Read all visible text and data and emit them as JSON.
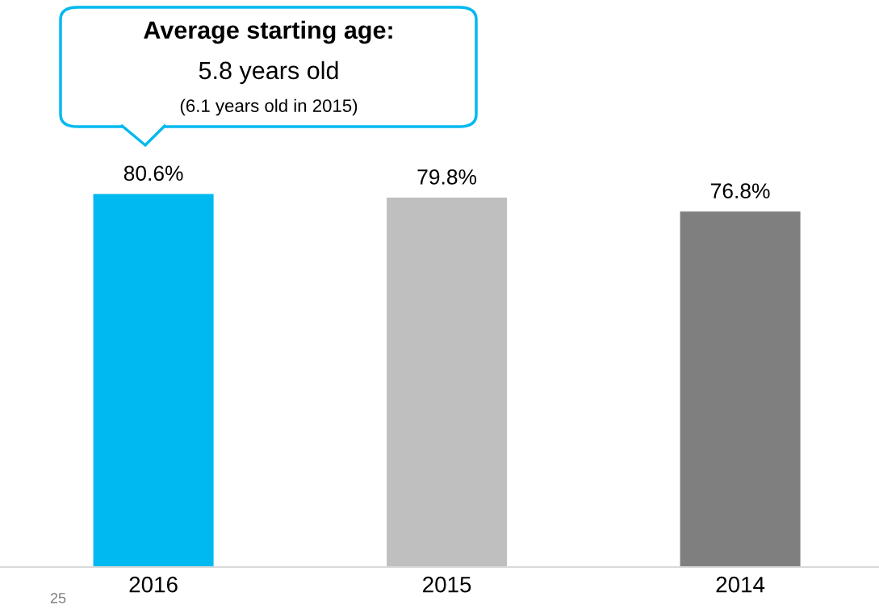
{
  "chart_data": {
    "type": "bar",
    "categories": [
      "2016",
      "2015",
      "2014"
    ],
    "values": [
      80.6,
      79.8,
      76.8
    ],
    "colors": [
      "#00b9f0",
      "#bfbfbf",
      "#7f7f7f"
    ],
    "value_labels": [
      "80.6%",
      "79.8%",
      "76.8%"
    ],
    "tick_labels": "x",
    "annotations": [
      "Average starting age:",
      "5.8 years old",
      "(6.1 years old in 2015)",
      "25"
    ]
  }
}
